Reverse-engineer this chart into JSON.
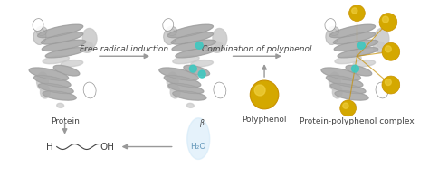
{
  "bg_color": "#ffffff",
  "arrow_color": "#999999",
  "protein_color_light": "#c8c8c8",
  "protein_color_dark": "#888888",
  "protein_color_mid": "#aaaaaa",
  "radical_color": "#40c8c0",
  "polyphenol_color": "#c89000",
  "polyphenol_fill": "#d4a800",
  "polyphenol_shine": "#f0d040",
  "water_color": "#d0e8f8",
  "water_text_color": "#6699bb",
  "text_color": "#444444",
  "label_protein": "Protein",
  "label_polyphenol": "Polyphenol",
  "label_complex": "Protein-polyphenol complex",
  "label_h": "H",
  "label_oh": "OH",
  "label_h2o": "H₂O",
  "label_step1": "Free radical induction",
  "label_step2": "Combination of polyphenol",
  "font_size": 6.5,
  "italic_font_size": 6.5
}
